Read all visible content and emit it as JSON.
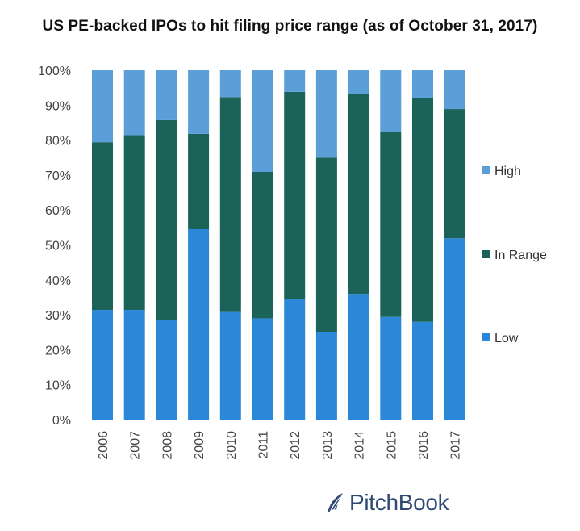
{
  "chart_data": {
    "type": "bar",
    "stacked": true,
    "title": "US PE-backed IPOs to hit filing price range (as of October 31, 2017)",
    "categories": [
      "2006",
      "2007",
      "2008",
      "2009",
      "2010",
      "2011",
      "2012",
      "2013",
      "2014",
      "2015",
      "2016",
      "2017"
    ],
    "series": [
      {
        "name": "Low",
        "color": "#2b88d8",
        "values": [
          31.4,
          31.4,
          28.6,
          54.5,
          30.8,
          29.0,
          34.4,
          25.0,
          36.0,
          29.4,
          28.0,
          51.9
        ]
      },
      {
        "name": "In Range",
        "color": "#1b6259",
        "values": [
          48.0,
          50.0,
          57.1,
          27.3,
          61.5,
          41.9,
          59.4,
          50.0,
          57.3,
          52.9,
          64.0,
          37.0
        ]
      },
      {
        "name": "High",
        "color": "#5b9fd9",
        "values": [
          20.6,
          18.6,
          14.3,
          18.2,
          7.7,
          29.1,
          6.2,
          25.0,
          6.7,
          17.7,
          8.0,
          11.1
        ]
      }
    ],
    "ylim": [
      0,
      100
    ],
    "yticks": [
      "0%",
      "10%",
      "20%",
      "30%",
      "40%",
      "50%",
      "60%",
      "70%",
      "80%",
      "90%",
      "100%"
    ],
    "legend_position": "right",
    "legend_order": [
      "High",
      "In Range",
      "Low"
    ],
    "grid": false
  },
  "branding": {
    "name": "PitchBook",
    "icon": "pitchbook-leaf-icon",
    "color": "#2f4a73"
  }
}
